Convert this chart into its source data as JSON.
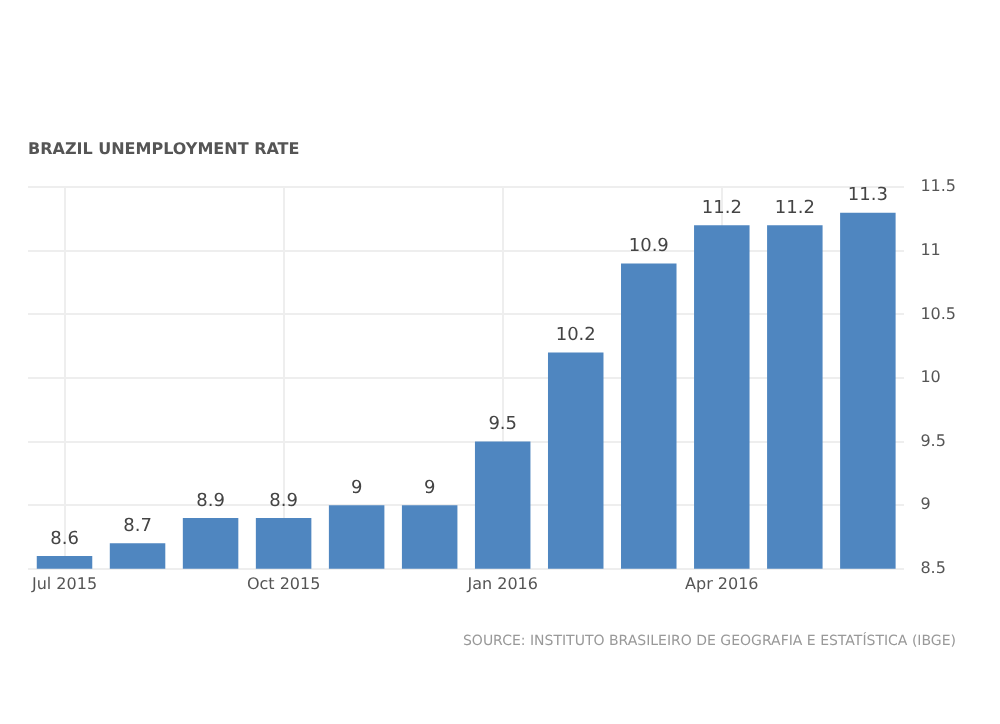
{
  "chart_data": {
    "type": "bar",
    "title": "BRAZIL UNEMPLOYMENT RATE",
    "categories": [
      "Jul 2015",
      null,
      null,
      "Oct 2015",
      null,
      null,
      "Jan 2016",
      null,
      null,
      "Apr 2016",
      null,
      null
    ],
    "values": [
      8.6,
      8.7,
      8.9,
      8.9,
      9,
      9,
      9.5,
      10.2,
      10.9,
      11.2,
      11.2,
      11.3
    ],
    "color": "#4f86c0",
    "data_labels": true,
    "ylim": [
      8.5,
      11.5
    ],
    "yticks": [
      8.5,
      9,
      9.5,
      10,
      10.5,
      11,
      11.5
    ],
    "grid": true,
    "annotations": [
      "SOURCE: INSTITUTO BRASILEIRO DE GEOGRAFIA E ESTATÍSTICA (IBGE)"
    ]
  }
}
